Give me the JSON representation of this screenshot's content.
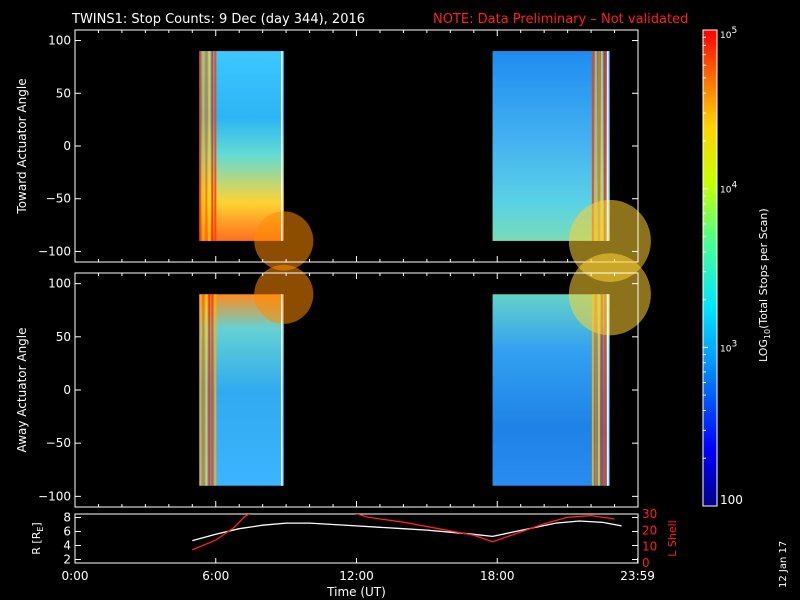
{
  "header": {
    "title": "TWINS1: Stop Counts:  9 Dec (day 344), 2016",
    "note": "NOTE: Data Preliminary – Not validated",
    "note_color": "#ff2020"
  },
  "date_stamp": "12 Jan 17",
  "chart_data": [
    {
      "type": "heatmap",
      "ylabel": "Toward Actuator Angle",
      "xlim": [
        0,
        24
      ],
      "ylim": [
        -110,
        110
      ],
      "y_ticks": [
        100,
        50,
        0,
        -50,
        -100
      ],
      "y_tick_labels": [
        "100",
        "50",
        "0",
        "−50",
        "−100"
      ],
      "blocks": [
        {
          "x_start": 5.3,
          "x_end": 8.9,
          "y_start": -90,
          "y_end": 90
        },
        {
          "x_start": 17.8,
          "x_end": 22.8,
          "y_start": -90,
          "y_end": 90
        }
      ]
    },
    {
      "type": "heatmap",
      "ylabel": "Away Actuator Angle",
      "xlim": [
        0,
        24
      ],
      "ylim": [
        -110,
        110
      ],
      "y_ticks": [
        100,
        50,
        0,
        -50,
        -100
      ],
      "y_tick_labels": [
        "100",
        "50",
        "0",
        "−50",
        "−100"
      ],
      "blocks": [
        {
          "x_start": 5.3,
          "x_end": 8.9,
          "y_start": -90,
          "y_end": 90
        },
        {
          "x_start": 17.8,
          "x_end": 22.8,
          "y_start": -90,
          "y_end": 90
        }
      ]
    },
    {
      "type": "line",
      "ylabel": "R [R",
      "ylabel_sub": "E",
      "ylabel_end": "]",
      "ylim": [
        1.5,
        8.5
      ],
      "y_ticks": [
        8,
        6,
        4,
        2
      ],
      "y_tick_labels": [
        "8",
        "6",
        "4",
        "2"
      ],
      "ylabel_right": "L Shell",
      "ylim_right": [
        0,
        30
      ],
      "y_ticks_right": [
        30,
        20,
        10,
        0
      ],
      "y_tick_labels_right": [
        "30",
        "20",
        "10",
        "0"
      ],
      "xlabel": "Time (UT)",
      "x_ticks": [
        0,
        6,
        12,
        18,
        23.983
      ],
      "x_tick_labels": [
        "0:00",
        "6:00",
        "12:00",
        "18:00",
        "23:59"
      ],
      "series": [
        {
          "color": "#ffffff",
          "x": [
            5.0,
            6.0,
            7.0,
            8.0,
            9.0,
            10.0,
            11.0,
            12.0,
            13.0,
            14.0,
            15.0,
            16.0,
            17.0,
            17.8,
            18.5,
            19.5,
            20.5,
            21.5,
            22.5,
            23.3
          ],
          "y": [
            4.7,
            5.6,
            6.4,
            6.9,
            7.2,
            7.2,
            7.0,
            6.8,
            6.6,
            6.4,
            6.2,
            5.9,
            5.6,
            5.3,
            5.8,
            6.5,
            7.2,
            7.5,
            7.3,
            6.8
          ]
        },
        {
          "color": "#ff2020",
          "axis": "right",
          "x": [
            5.0,
            6.0,
            6.8,
            7.2,
            7.5
          ],
          "y": [
            8,
            14,
            22,
            28,
            31
          ]
        },
        {
          "color": "#ff2020",
          "axis": "right",
          "x": [
            11.8,
            12.5,
            14.0,
            15.5,
            17.0,
            17.8,
            18.8,
            20.0,
            21.0,
            22.0,
            23.0
          ],
          "y": [
            31,
            28,
            25,
            21,
            17,
            13,
            18,
            24,
            28,
            29,
            27
          ]
        }
      ]
    }
  ],
  "colorbar": {
    "label": "LOG",
    "label_sub": "10",
    "label_end": "(Total Stops per Scan)",
    "tick_labels": [
      {
        "base": "10",
        "exp": "5"
      },
      {
        "base": "10",
        "exp": "4"
      },
      {
        "base": "10",
        "exp": "3"
      },
      {
        "base": "100",
        "exp": ""
      }
    ],
    "log_min": 2,
    "log_max": 5
  }
}
